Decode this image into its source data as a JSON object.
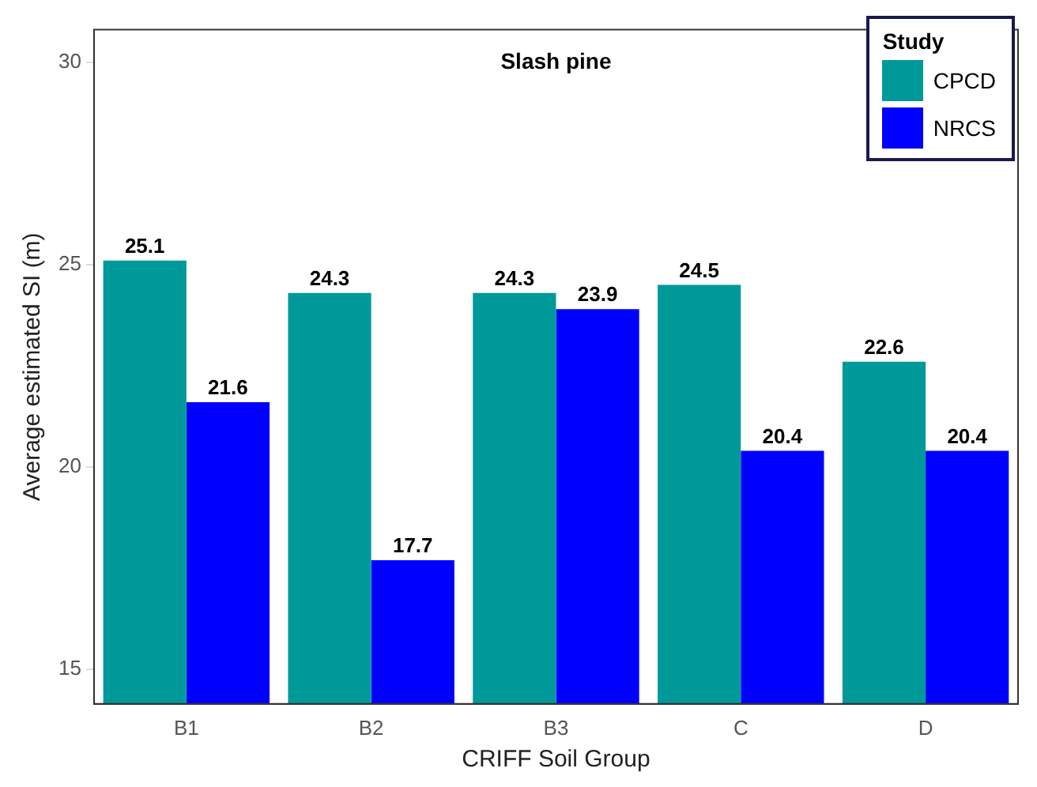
{
  "chart_data": {
    "type": "bar",
    "title": "Slash pine",
    "xlabel": "CRIFF Soil Group",
    "ylabel": "Average estimated SI (m)",
    "legend_title": "Study",
    "categories": [
      "B1",
      "B2",
      "B3",
      "C",
      "D"
    ],
    "series": [
      {
        "name": "CPCD",
        "color": "#009999",
        "values": [
          25.1,
          24.3,
          24.3,
          24.5,
          22.6
        ]
      },
      {
        "name": "NRCS",
        "color": "#0000ff",
        "values": [
          21.6,
          17.7,
          23.9,
          20.4,
          20.4
        ]
      }
    ],
    "ylim": [
      14.15,
      30.8
    ],
    "yticks": [
      15,
      20,
      25,
      30
    ],
    "grid": false,
    "legend": "top right",
    "data_labels": true
  }
}
